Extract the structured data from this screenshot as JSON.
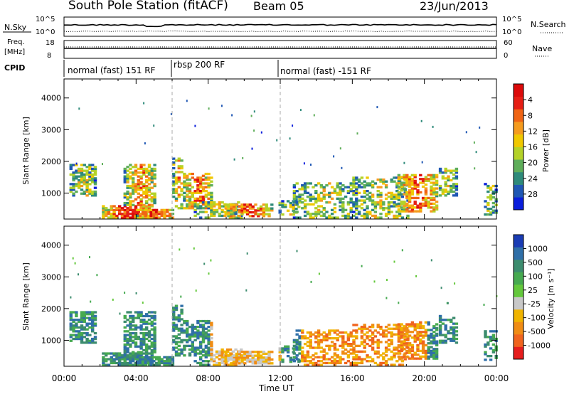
{
  "header": {
    "station": "South Pole Station (fitACF)",
    "beam": "Beam 05",
    "date": "23/Jun/2013"
  },
  "top_panels": {
    "nsky_label": "N.Sky",
    "nsky_ticks": [
      "10^5",
      "10^0"
    ],
    "nsearch_label": "N.Search",
    "nsearch_ticks": [
      "10^5",
      "10^0"
    ],
    "freq_label": "Freq.",
    "freq_unit": "[MHz]",
    "freq_ticks": [
      "18",
      "8"
    ],
    "nave_label": "Nave",
    "nave_ticks": [
      "60",
      "0"
    ],
    "cpid_label": "CPID",
    "cpid_segments": [
      {
        "label": "normal (fast) 151 RF",
        "start_hour": 0,
        "end_hour": 6
      },
      {
        "label": "rbsp 200 RF",
        "start_hour": 6,
        "end_hour": 12
      },
      {
        "label": "normal (fast) -151 RF",
        "start_hour": 12,
        "end_hour": 24
      }
    ]
  },
  "chart_data": [
    {
      "type": "heatmap",
      "title": "",
      "xlabel": "Time UT",
      "ylabel": "Slant Range [km]",
      "xlim": [
        0,
        24
      ],
      "ylim": [
        180,
        4600
      ],
      "x_tick_labels": [
        "00:00",
        "04:00",
        "08:00",
        "12:00",
        "16:00",
        "20:00",
        "00:00"
      ],
      "y_ticks": [
        1000,
        2000,
        3000,
        4000
      ],
      "y_tick_labels": [
        "1000",
        "2000",
        "3000",
        "4000"
      ],
      "colorbar": {
        "label": "Power [dB]",
        "tick_labels": [
          "4",
          "8",
          "12",
          "16",
          "20",
          "24",
          "28"
        ],
        "colors": [
          "#0a1edc",
          "#1f57b4",
          "#2e8a7a",
          "#5fae5a",
          "#b4d228",
          "#f0c800",
          "#f59b1e",
          "#f06414",
          "#e61e14",
          "#dc0a0a"
        ]
      },
      "mode_boundaries_hours": [
        6,
        12
      ]
    },
    {
      "type": "heatmap",
      "title": "",
      "xlabel": "Time UT",
      "ylabel": "Slant Range [km]",
      "xlim": [
        0,
        24
      ],
      "ylim": [
        180,
        4600
      ],
      "x_tick_labels": [
        "00:00",
        "04:00",
        "08:00",
        "12:00",
        "16:00",
        "20:00",
        "00:00"
      ],
      "y_ticks": [
        1000,
        2000,
        3000,
        4000
      ],
      "y_tick_labels": [
        "1000",
        "2000",
        "3000",
        "4000"
      ],
      "colorbar": {
        "label": "Velocity [m s⁻¹]",
        "tick_labels": [
          "1000",
          "500",
          "100",
          "25",
          "-25",
          "-100",
          "-500",
          "-1000"
        ],
        "colors": [
          "#1a3cb4",
          "#2f6fa8",
          "#3c8c6e",
          "#46aa50",
          "#64c83c",
          "#c8c8c8",
          "#f0b400",
          "#f08c14",
          "#f0641e",
          "#e61e1e"
        ]
      },
      "mode_boundaries_hours": [
        6,
        12
      ]
    }
  ]
}
